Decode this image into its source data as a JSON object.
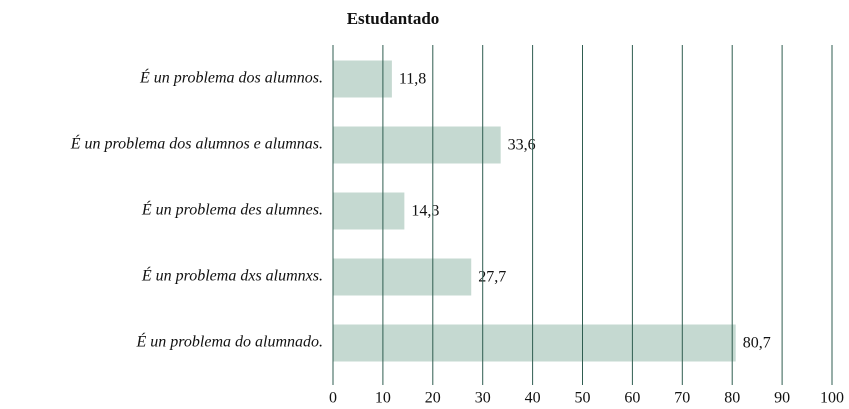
{
  "chart_data": {
    "type": "hbar",
    "title": "Estudantado",
    "categories": [
      "É un problema dos alumnos.",
      "É un problema dos alumnos e alumnas.",
      "É un problema des alumnes.",
      "É un problema dxs alumnxs.",
      "É un problema do alumnado."
    ],
    "values": [
      11.8,
      33.6,
      14.3,
      27.7,
      80.7
    ],
    "value_labels": [
      "11,8",
      "33,6",
      "14,3",
      "27,7",
      "80,7"
    ],
    "color": "#c5d9d1",
    "grid_color": "#2f5d50",
    "xlim": [
      0,
      100
    ],
    "xticks": [
      0,
      10,
      20,
      30,
      40,
      50,
      60,
      70,
      80,
      90,
      100
    ],
    "grid": true
  }
}
